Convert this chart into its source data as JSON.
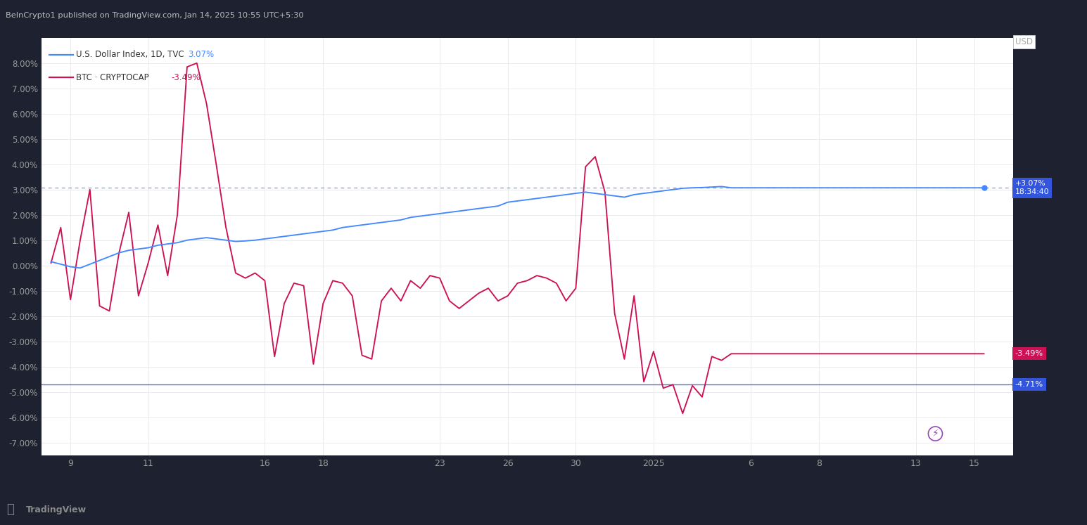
{
  "header_text": "BeInCrypto1 published on TradingView.com, Jan 14, 2025 10:55 UTC+5:30",
  "legend_line1": "U.S. Dollar Index, 1D, TVC",
  "legend_val1": "3.07%",
  "legend_line2": "BTC · CRYPTOCAP",
  "legend_val2": "-3.49%",
  "hline_btc_val": -4.71,
  "hline_dxy_val": 3.07,
  "bg_dark": "#1e2130",
  "bg_chart": "#ffffff",
  "color_dxy": "#4488ff",
  "color_btc": "#cc1155",
  "color_dxy_badge": "#3355dd",
  "color_btc_badge": "#cc1155",
  "color_hline_btc": "#4466bb",
  "color_grid": "#e8e8e8",
  "color_tick": "#999999",
  "ylim": [
    -7.5,
    9.0
  ],
  "yticks": [
    -7.0,
    -6.0,
    -5.0,
    -4.0,
    -3.0,
    -2.0,
    -1.0,
    0.0,
    1.0,
    2.0,
    3.0,
    4.0,
    5.0,
    6.0,
    7.0,
    8.0
  ],
  "x_labels": [
    "9",
    "11",
    "16",
    "18",
    "23",
    "26",
    "30",
    "2025",
    "6",
    "8",
    "13",
    "15"
  ],
  "x_positions": [
    2,
    10,
    22,
    28,
    40,
    47,
    54,
    62,
    72,
    79,
    89,
    95
  ],
  "dxy_y": [
    0.15,
    0.05,
    -0.05,
    -0.1,
    0.05,
    0.2,
    0.35,
    0.5,
    0.6,
    0.65,
    0.7,
    0.8,
    0.85,
    0.9,
    1.0,
    1.05,
    1.1,
    1.05,
    1.0,
    0.95,
    0.97,
    1.0,
    1.05,
    1.1,
    1.15,
    1.2,
    1.25,
    1.3,
    1.35,
    1.4,
    1.5,
    1.55,
    1.6,
    1.65,
    1.7,
    1.75,
    1.8,
    1.9,
    1.95,
    2.0,
    2.05,
    2.1,
    2.15,
    2.2,
    2.25,
    2.3,
    2.35,
    2.5,
    2.55,
    2.6,
    2.65,
    2.7,
    2.75,
    2.8,
    2.85,
    2.9,
    2.85,
    2.8,
    2.75,
    2.7,
    2.8,
    2.85,
    2.9,
    2.95,
    3.0,
    3.05,
    3.07,
    3.08,
    3.1,
    3.12,
    3.07,
    3.07,
    3.07,
    3.07,
    3.07,
    3.07,
    3.07,
    3.07,
    3.07,
    3.07,
    3.07,
    3.07,
    3.07,
    3.07,
    3.07,
    3.07,
    3.07,
    3.07,
    3.07,
    3.07,
    3.07,
    3.07,
    3.07,
    3.07,
    3.07,
    3.07,
    3.07
  ],
  "btc_y": [
    0.1,
    1.5,
    -1.35,
    1.0,
    3.0,
    -1.6,
    -1.8,
    0.5,
    2.1,
    -1.2,
    0.1,
    1.6,
    -0.4,
    2.0,
    7.85,
    8.0,
    6.4,
    4.0,
    1.5,
    -0.3,
    -0.5,
    -0.3,
    -0.6,
    -3.6,
    -1.5,
    -0.7,
    -0.8,
    -3.9,
    -1.5,
    -0.6,
    -0.7,
    -1.2,
    -3.55,
    -3.7,
    -1.4,
    -0.9,
    -1.4,
    -0.6,
    -0.9,
    -0.4,
    -0.5,
    -1.4,
    -1.7,
    -1.4,
    -1.1,
    -0.9,
    -1.4,
    -1.2,
    -0.7,
    -0.6,
    -0.4,
    -0.5,
    -0.7,
    -1.4,
    -0.9,
    3.9,
    4.3,
    2.9,
    -1.9,
    -3.7,
    -1.2,
    -4.6,
    -3.4,
    -4.85,
    -4.71,
    -5.85,
    -4.75,
    -5.2,
    -3.6,
    -3.75,
    -3.49,
    -3.49,
    -3.49,
    -3.49,
    -3.49,
    -3.49,
    -3.49,
    -3.49,
    -3.49,
    -3.49,
    -3.49,
    -3.49,
    -3.49,
    -3.49,
    -3.49,
    -3.49,
    -3.49,
    -3.49,
    -3.49,
    -3.49,
    -3.49,
    -3.49,
    -3.49,
    -3.49,
    -3.49,
    -3.49,
    -3.49
  ]
}
